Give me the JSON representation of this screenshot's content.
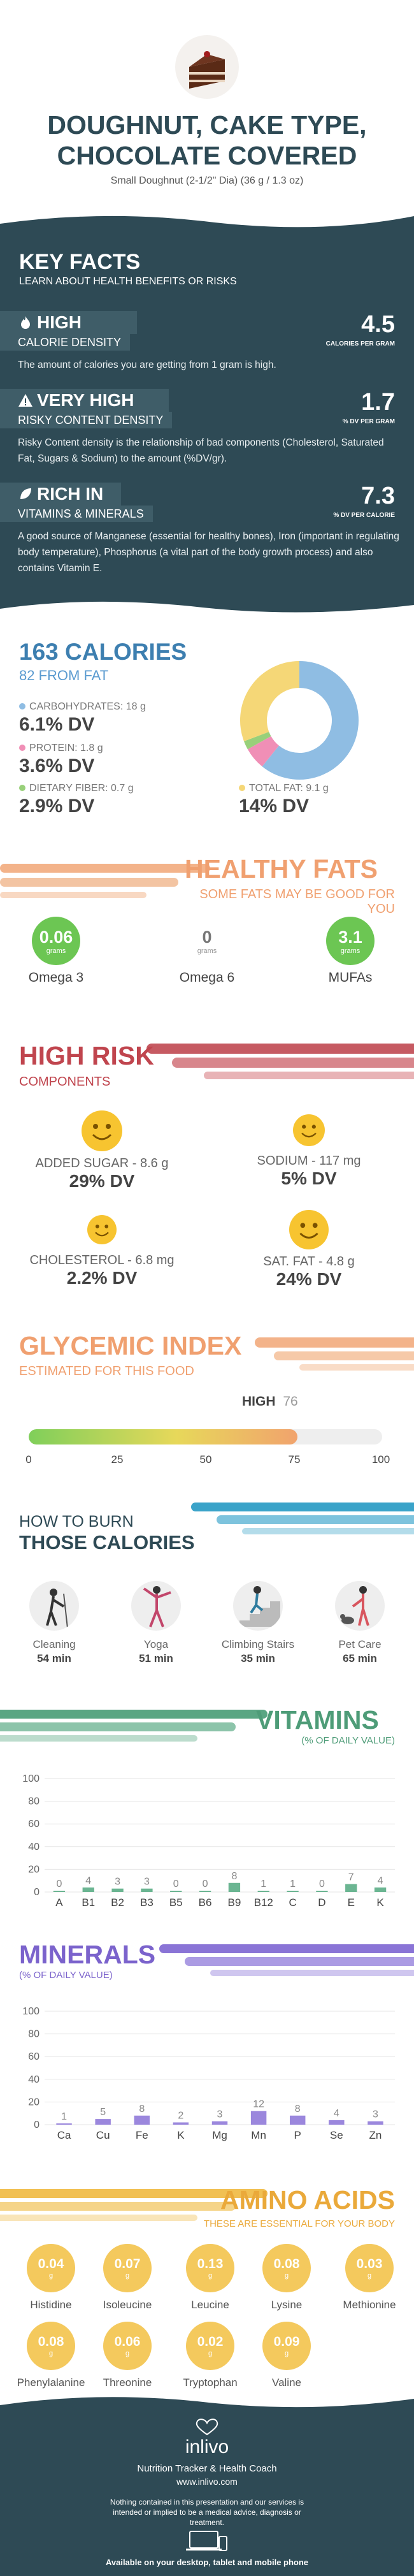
{
  "header": {
    "title_line1": "DOUGHNUT, CAKE TYPE,",
    "title_line2": "CHOCOLATE COVERED",
    "subtitle": "Small Doughnut (2-1/2\" Dia) (36 g / 1.3 oz)"
  },
  "key_facts": {
    "title": "KEY FACTS",
    "subtitle": "LEARN ABOUT HEALTH BENEFITS OR RISKS",
    "items": [
      {
        "level": "HIGH",
        "label": "CALORIE DENSITY",
        "value": "4.5",
        "unit": "CALORIES PER GRAM",
        "icon": "flame-icon",
        "description": "The amount of calories you are getting from 1 gram is high."
      },
      {
        "level": "VERY HIGH",
        "label": "RISKY CONTENT DENSITY",
        "value": "1.7",
        "unit": "% DV PER GRAM",
        "icon": "warning-icon",
        "description": "Risky Content density is the relationship of bad components (Cholesterol, Saturated Fat, Sugars & Sodium) to the amount (%DV/gr)."
      },
      {
        "level": "RICH IN",
        "label": "VITAMINS & MINERALS",
        "value": "7.3",
        "unit": "% DV PER CALORIE",
        "icon": "leaf-icon",
        "description": "A good source of Manganese (essential for healthy bones), Iron (important in regulating body temperature), Phosphorus (a vital part of the body growth process) and also contains Vitamin E."
      }
    ]
  },
  "calories": {
    "title": "163 CALORIES",
    "subtitle": "82 FROM FAT",
    "nutrients": [
      {
        "label": "CARBOHYDRATES: 18 g",
        "dv": "6.1% DV",
        "color": "#8fbde3"
      },
      {
        "label": "PROTEIN: 1.8 g",
        "dv": "3.6% DV",
        "color": "#f08fb6"
      },
      {
        "label": "DIETARY FIBER: 0.7 g",
        "dv": "2.9% DV",
        "color": "#98d07a"
      },
      {
        "label": "TOTAL FAT: 9.1 g",
        "dv": "14% DV",
        "color": "#f5d777"
      }
    ],
    "donut": [
      {
        "name": "carbohydrates",
        "value": 18,
        "color": "#8fbde3"
      },
      {
        "name": "protein",
        "value": 1.8,
        "color": "#f08fb6"
      },
      {
        "name": "fiber",
        "value": 0.7,
        "color": "#98d07a"
      },
      {
        "name": "fat",
        "value": 9.1,
        "color": "#f5d777"
      }
    ]
  },
  "healthy_fats": {
    "title": "HEALTHY FATS",
    "subtitle": "SOME FATS MAY BE GOOD FOR YOU",
    "items": [
      {
        "value": "0.06",
        "unit": "grams",
        "name": "Omega 3",
        "color": "#6cc653"
      },
      {
        "value": "0",
        "unit": "grams",
        "name": "Omega 6",
        "color": "#ffffff"
      },
      {
        "value": "3.1",
        "unit": "grams",
        "name": "MUFAs",
        "color": "#6cc653"
      }
    ]
  },
  "high_risk": {
    "title": "HIGH RISK",
    "subtitle": "COMPONENTS",
    "items": [
      {
        "label": "ADDED SUGAR - 8.6 g",
        "dv": "29% DV"
      },
      {
        "label": "SODIUM - 117 mg",
        "dv": "5% DV"
      },
      {
        "label": "CHOLESTEROL - 6.8 mg",
        "dv": "2.2% DV"
      },
      {
        "label": "SAT. FAT - 4.8 g",
        "dv": "24% DV"
      }
    ]
  },
  "glycemic": {
    "title": "GLYCEMIC INDEX",
    "subtitle": "ESTIMATED FOR THIS FOOD",
    "level": "HIGH",
    "value": "76",
    "value_num": 76,
    "ticks": [
      "0",
      "25",
      "50",
      "75",
      "100"
    ]
  },
  "burn": {
    "title_line1": "HOW TO BURN",
    "title_line2": "THOSE CALORIES",
    "items": [
      {
        "name": "Cleaning",
        "minutes": "54 min",
        "icon": "cleaning-icon"
      },
      {
        "name": "Yoga",
        "minutes": "51 min",
        "icon": "yoga-icon"
      },
      {
        "name": "Climbing Stairs",
        "minutes": "35 min",
        "icon": "stairs-icon"
      },
      {
        "name": "Pet Care",
        "minutes": "65 min",
        "icon": "pet-care-icon"
      }
    ]
  },
  "vitamins": {
    "title": "VITAMINS",
    "subtitle": "(% OF DAILY VALUE)",
    "chart_data": {
      "type": "bar",
      "categories": [
        "A",
        "B1",
        "B2",
        "B3",
        "B5",
        "B6",
        "B9",
        "B12",
        "C",
        "D",
        "E",
        "K"
      ],
      "values": [
        0,
        4,
        3,
        3,
        0,
        0,
        8,
        1,
        1,
        0,
        7,
        4
      ],
      "ylim": [
        0,
        100
      ],
      "yticks": [
        "0",
        "20",
        "40",
        "60",
        "80",
        "100"
      ],
      "color": "#6bb592"
    }
  },
  "minerals": {
    "title": "MINERALS",
    "subtitle": "(% OF DAILY VALUE)",
    "chart_data": {
      "type": "bar",
      "categories": [
        "Ca",
        "Cu",
        "Fe",
        "K",
        "Mg",
        "Mn",
        "P",
        "Se",
        "Zn"
      ],
      "values": [
        1,
        5,
        8,
        2,
        3,
        12,
        8,
        4,
        3
      ],
      "ylim": [
        0,
        100
      ],
      "yticks": [
        "0",
        "20",
        "40",
        "60",
        "80",
        "100"
      ],
      "color": "#9b87dd"
    }
  },
  "amino": {
    "title": "AMINO ACIDS",
    "subtitle": "THESE ARE ESSENTIAL FOR YOUR BODY",
    "items": [
      {
        "value": "0.04",
        "unit": "g",
        "name": "Histidine"
      },
      {
        "value": "0.07",
        "unit": "g",
        "name": "Isoleucine"
      },
      {
        "value": "0.13",
        "unit": "g",
        "name": "Leucine"
      },
      {
        "value": "0.08",
        "unit": "g",
        "name": "Lysine"
      },
      {
        "value": "0.03",
        "unit": "g",
        "name": "Methionine"
      },
      {
        "value": "0.08",
        "unit": "g",
        "name": "Phenylalanine"
      },
      {
        "value": "0.06",
        "unit": "g",
        "name": "Threonine"
      },
      {
        "value": "0.02",
        "unit": "g",
        "name": "Tryptophan"
      },
      {
        "value": "0.09",
        "unit": "g",
        "name": "Valine"
      }
    ]
  },
  "footer": {
    "brand": "inlivo",
    "tagline": "Nutrition Tracker & Health Coach",
    "site": "www.inlivo.com",
    "disclaimer": "Nothing contained in this presentation and our services is intended or implied to be a medical advice, diagnosis or treatment.",
    "availability": "Available on your desktop, tablet and mobile phone"
  }
}
